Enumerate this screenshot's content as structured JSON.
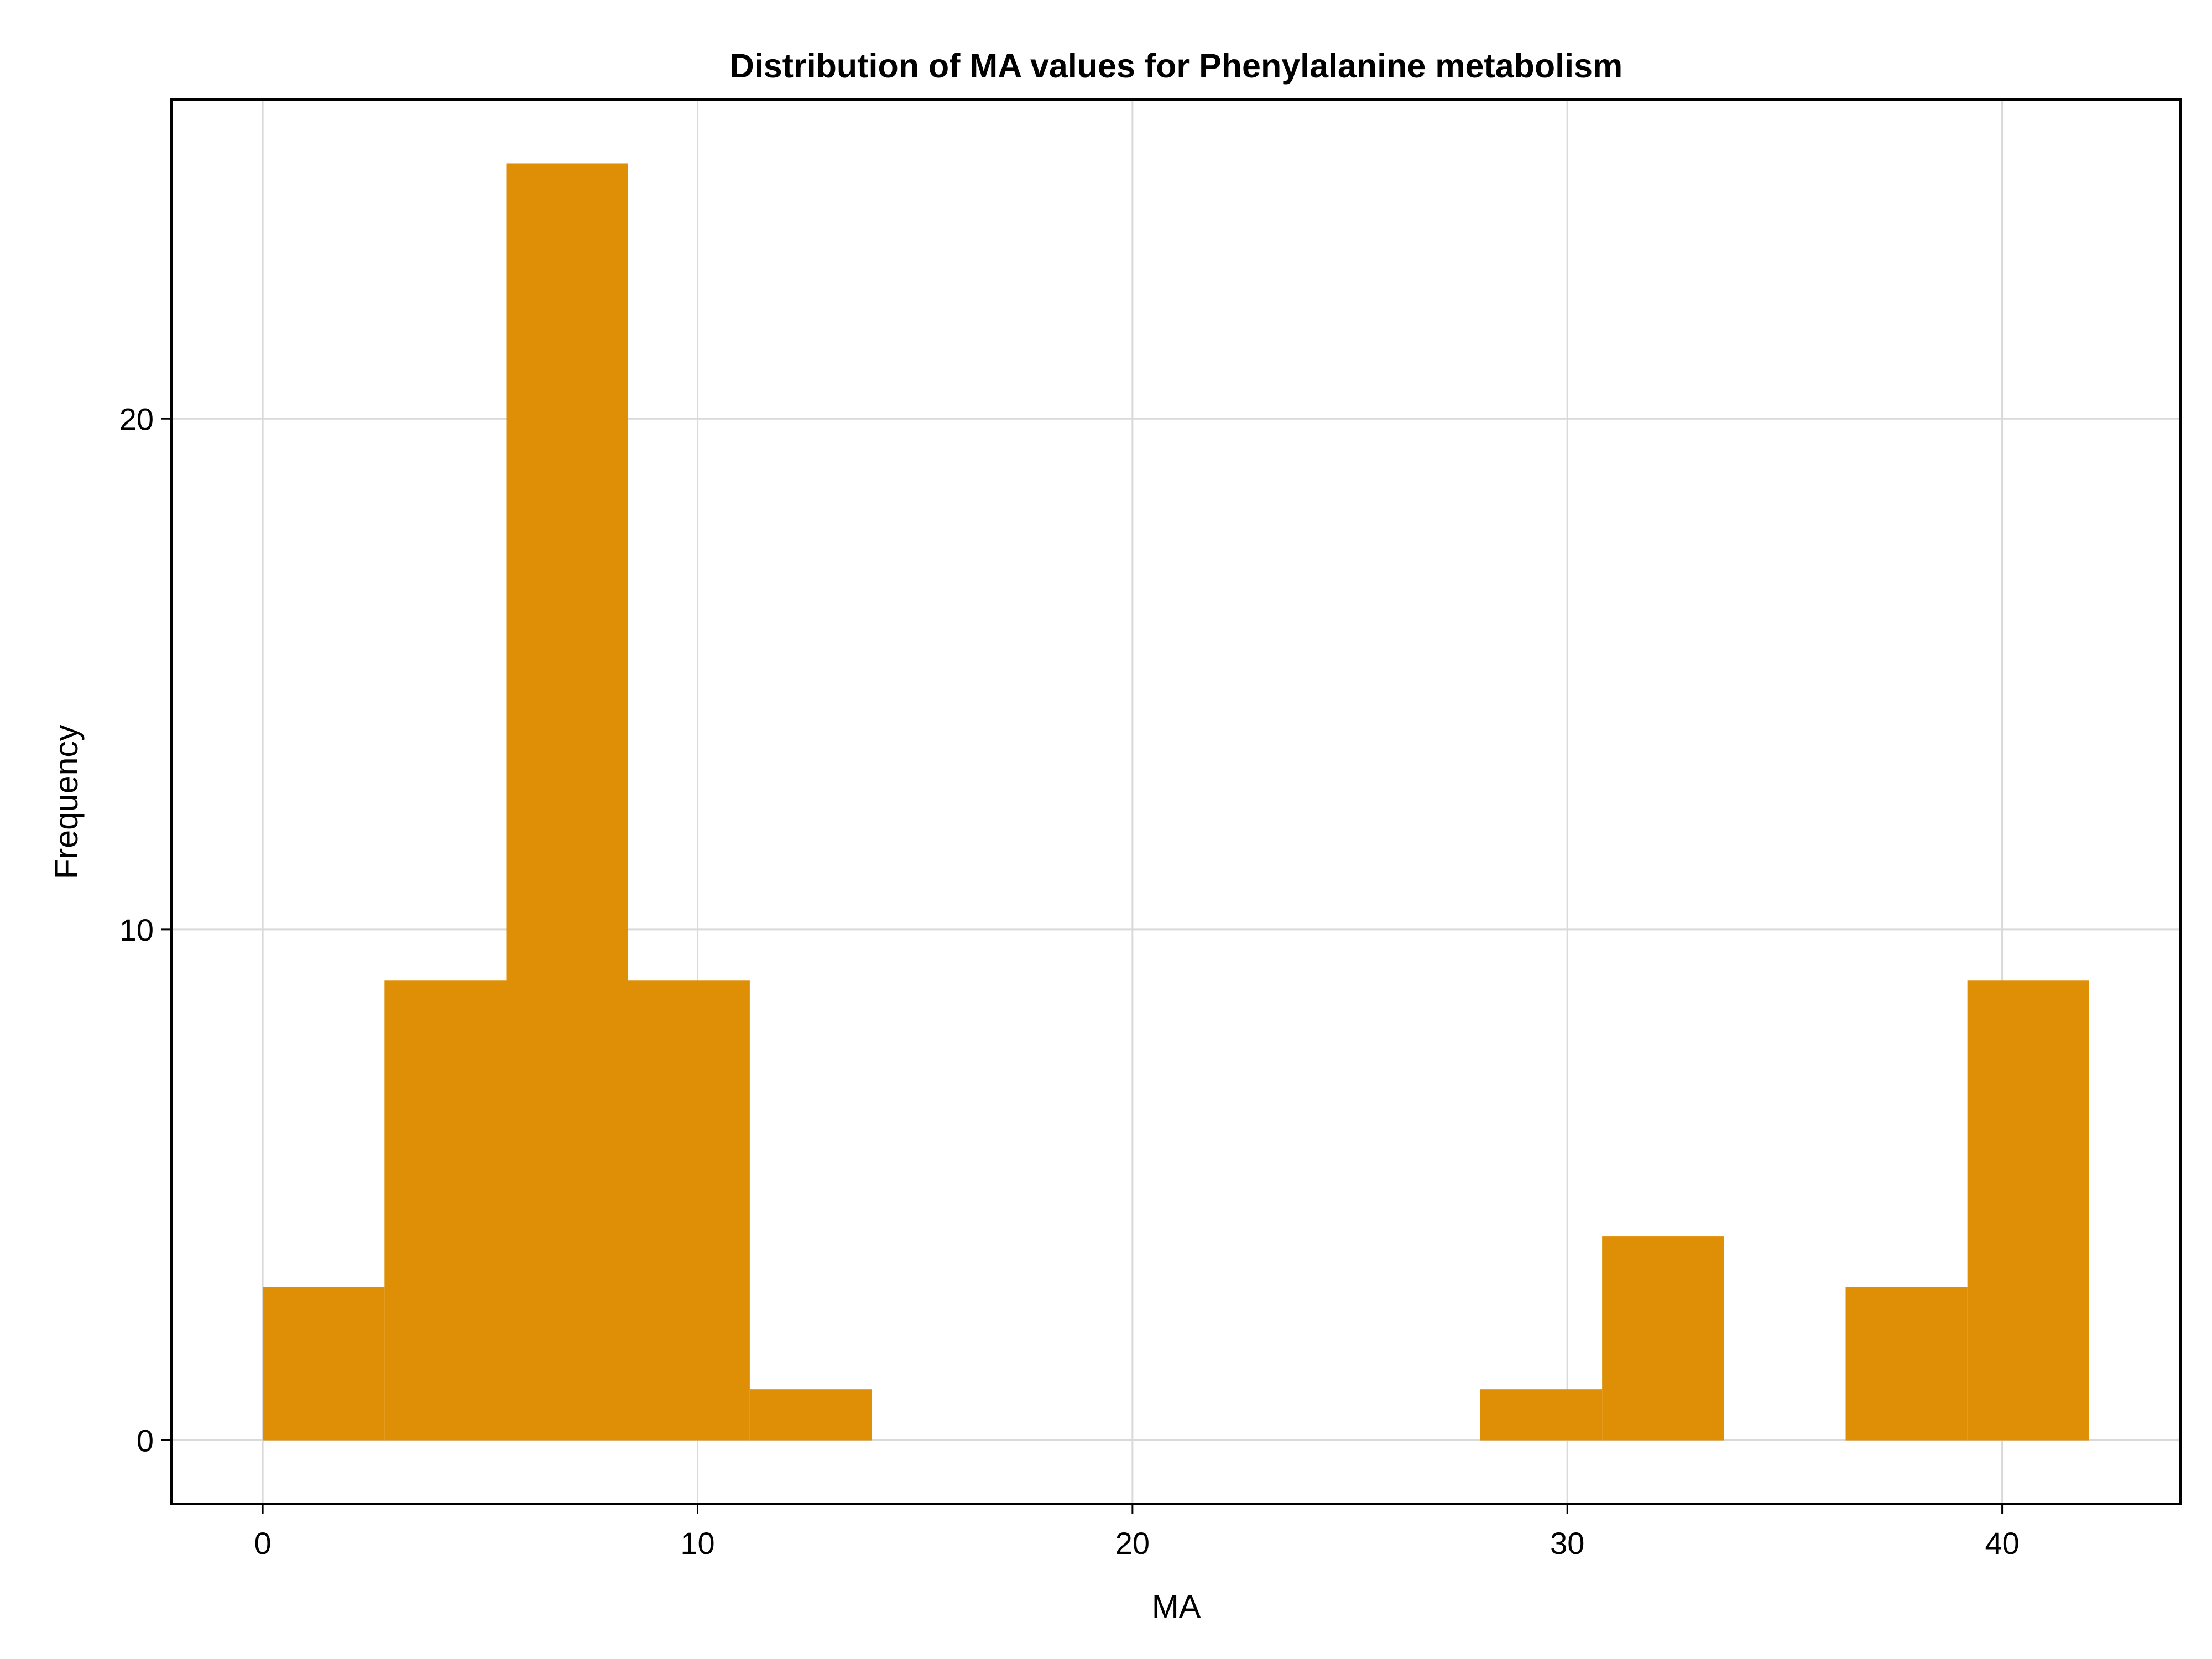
{
  "chart_data": {
    "type": "bar",
    "title": "Distribution of MA values for Phenylalanine metabolism",
    "xlabel": "MA",
    "ylabel": "Frequency",
    "bin_width": 2.8,
    "bins": [
      {
        "start": 0.0,
        "end": 2.8,
        "count": 3
      },
      {
        "start": 2.8,
        "end": 5.6,
        "count": 9
      },
      {
        "start": 5.6,
        "end": 8.4,
        "count": 25
      },
      {
        "start": 8.4,
        "end": 11.2,
        "count": 9
      },
      {
        "start": 11.2,
        "end": 14.0,
        "count": 1
      },
      {
        "start": 14.0,
        "end": 16.8,
        "count": 0
      },
      {
        "start": 16.8,
        "end": 19.6,
        "count": 0
      },
      {
        "start": 19.6,
        "end": 22.4,
        "count": 0
      },
      {
        "start": 22.4,
        "end": 25.2,
        "count": 0
      },
      {
        "start": 25.2,
        "end": 28.0,
        "count": 0
      },
      {
        "start": 28.0,
        "end": 30.8,
        "count": 1
      },
      {
        "start": 30.8,
        "end": 33.6,
        "count": 4
      },
      {
        "start": 33.6,
        "end": 36.4,
        "count": 0
      },
      {
        "start": 36.4,
        "end": 39.2,
        "count": 3
      },
      {
        "start": 39.2,
        "end": 42.0,
        "count": 9
      }
    ],
    "xlim": [
      -2.1,
      44.1
    ],
    "ylim": [
      -1.25,
      26.25
    ],
    "xticks": [
      0,
      10,
      20,
      30,
      40
    ],
    "xtick_labels": [
      "0",
      "10",
      "20",
      "30",
      "40"
    ],
    "yticks": [
      0,
      10,
      20
    ],
    "ytick_labels": [
      "0",
      "10",
      "20"
    ],
    "grid": true,
    "legend": "none",
    "bar_color": "#df8f06",
    "grid_color": "#d9d9d9"
  }
}
